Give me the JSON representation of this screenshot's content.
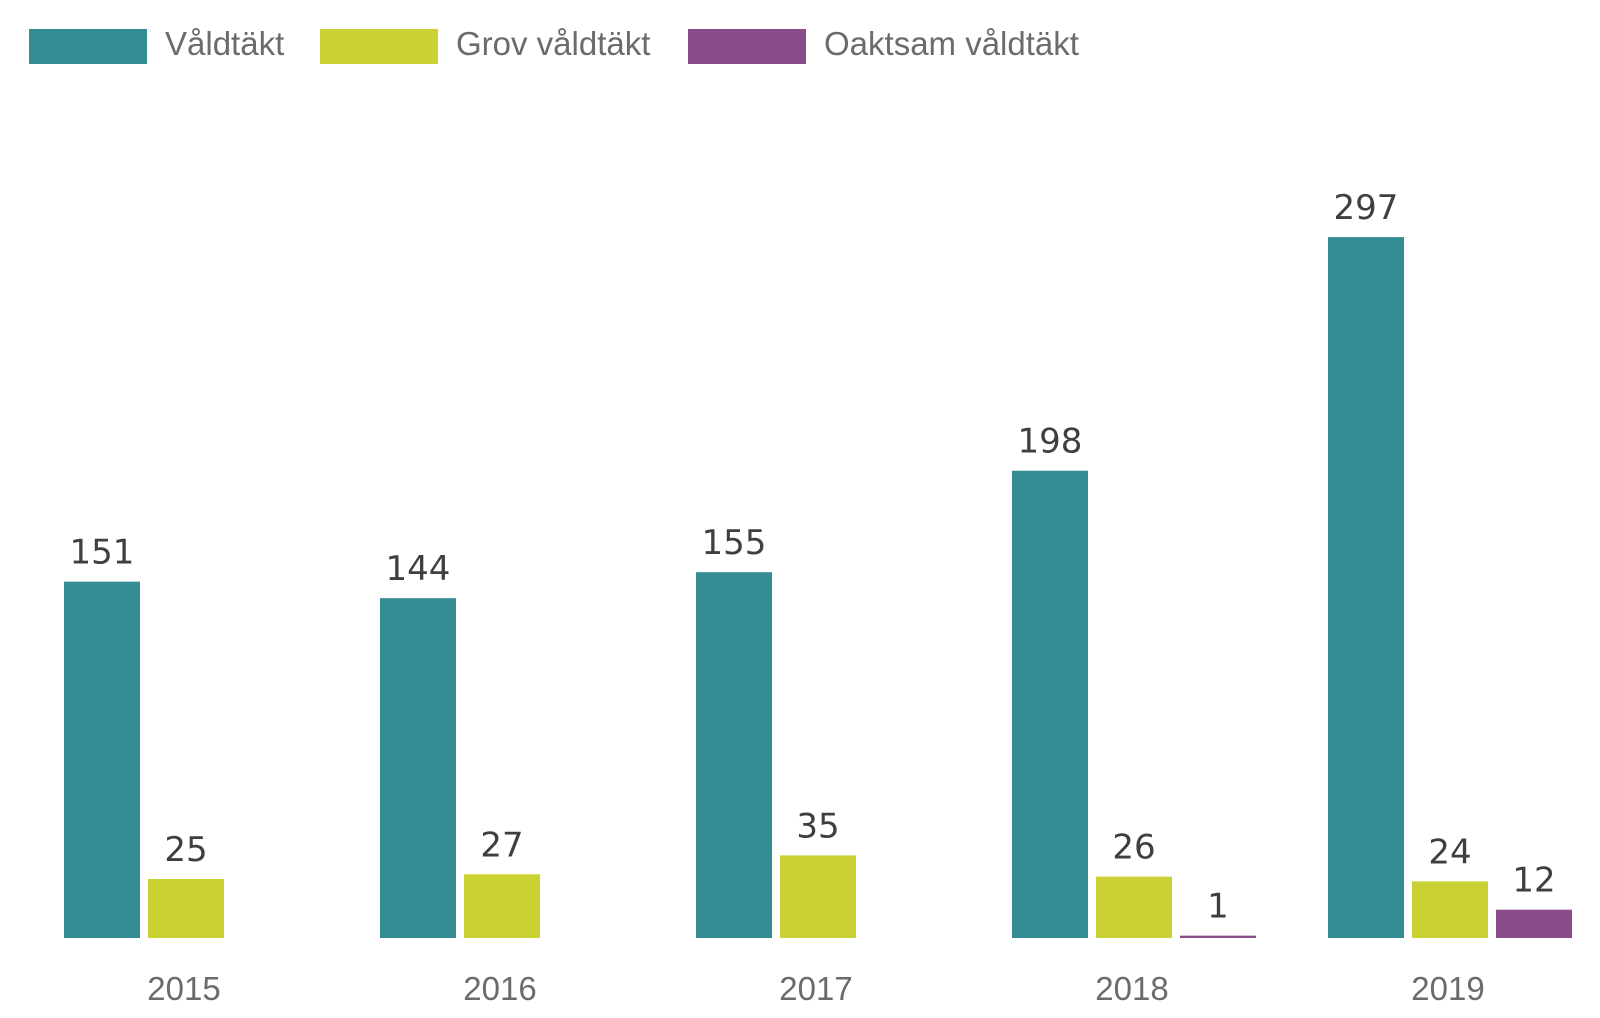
{
  "chart_data": {
    "type": "bar",
    "title": "",
    "xlabel": "",
    "ylabel": "",
    "ylim": [
      0,
      330
    ],
    "grid": false,
    "legend_position": "top-left",
    "categories": [
      "2015",
      "2016",
      "2017",
      "2018",
      "2019"
    ],
    "series": [
      {
        "name": "Våldtäkt",
        "color": "#348c94",
        "values": [
          151,
          144,
          155,
          198,
          297
        ]
      },
      {
        "name": "Grov våldtäkt",
        "color": "#cad133",
        "values": [
          25,
          27,
          35,
          26,
          24
        ]
      },
      {
        "name": "Oaktsam våldtäkt",
        "color": "#8b4c8c",
        "values": [
          null,
          null,
          null,
          1,
          12
        ]
      }
    ]
  }
}
